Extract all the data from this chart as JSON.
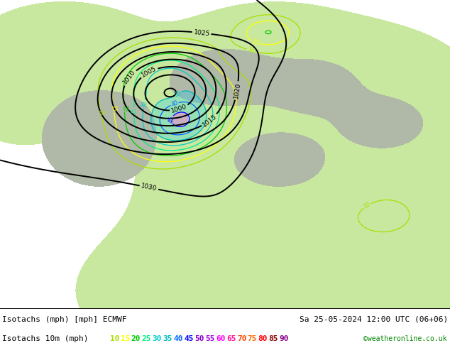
{
  "title_left": "Isotachs (mph) [mph] ECMWF",
  "title_right": "Sa 25-05-2024 12:00 UTC (06+06)",
  "legend_label": "Isotachs 10m (mph)",
  "legend_values": [
    10,
    15,
    20,
    25,
    30,
    35,
    40,
    45,
    50,
    55,
    60,
    65,
    70,
    75,
    80,
    85,
    90
  ],
  "legend_colors": [
    "#aadd00",
    "#ffff00",
    "#00cc00",
    "#00ee88",
    "#00cccc",
    "#00bbbb",
    "#0066ff",
    "#0000ff",
    "#8800cc",
    "#9900dd",
    "#ff00ff",
    "#ff1199",
    "#ff4400",
    "#ff6600",
    "#ff0000",
    "#880000",
    "#880088"
  ],
  "bg_land": "#c8e8a0",
  "bg_ocean": "#e8e8e8",
  "bg_atlantic": "#f0f0f0",
  "isobar_color": "#000000",
  "isotach_colors": {
    "10": "#aadd00",
    "15": "#ffff00",
    "20": "#00cc00",
    "25": "#00ee88",
    "30": "#00cccc",
    "35": "#00bbbb",
    "40": "#0066ff"
  },
  "footer_bg": "#ffffff",
  "footer_text_color": "#000000",
  "footer_green": "#008800",
  "fig_width": 6.34,
  "fig_height": 4.9,
  "dpi": 100
}
